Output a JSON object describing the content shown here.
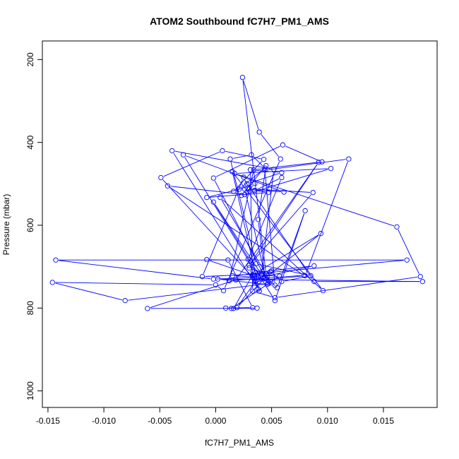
{
  "chart_data": {
    "type": "scatter",
    "title": "ATOM2 Southbound fC7H7_PM1_AMS",
    "xlabel": "fC7H7_PM1_AMS",
    "ylabel": "Pressure (mbar)",
    "xlim": [
      -0.0155,
      0.0198
    ],
    "ylim": [
      1040,
      155
    ],
    "y_reversed": true,
    "grid": false,
    "legend": "none",
    "connect_points": true,
    "series_color": "#0000ff",
    "x_ticks": [
      -0.015,
      -0.01,
      -0.005,
      0.0,
      0.005,
      0.01,
      0.015
    ],
    "x_tick_labels": [
      "-0.015",
      "-0.010",
      "-0.005",
      "0.000",
      "0.005",
      "0.010",
      "0.015"
    ],
    "y_ticks": [
      200,
      400,
      600,
      800,
      1000
    ],
    "y_tick_labels": [
      "200",
      "400",
      "600",
      "800",
      "1000"
    ],
    "x": [
      0.0009,
      0.0033,
      0.0011,
      -0.0008,
      0.0047,
      0.0035,
      0.005,
      0.0019,
      0.0038,
      -0.0002,
      -0.0143,
      0.0171,
      0.0015,
      0.004,
      0.0088,
      0.0036,
      -0.0029,
      0.0061,
      0.0026,
      0.0046,
      0.0049,
      0.0059,
      0.0085,
      0.0036,
      0.0013,
      0.0032,
      0.0044,
      0.0021,
      -0.0008,
      0.0047,
      0.0035,
      0.0059,
      0.0029,
      0.0038,
      -0.0039,
      0.0052,
      0.0041,
      -0.0002,
      0.0053,
      0.008,
      0.0055,
      0.0041,
      0.003,
      0.0039,
      0.0015,
      0.0096,
      0.0004,
      0.0049,
      0.0033,
      0.0094,
      0.0044,
      0.0038,
      0.0045,
      0.0023,
      0.0103,
      0.0017,
      0.0162,
      0.0183,
      0.0053,
      0.0033,
      0.0031,
      0.0059,
      0.0028,
      0.0088,
      0.0185,
      0.0002,
      0.0053,
      0.0044,
      0.0119,
      0.008,
      0.0036,
      -0.0049,
      0.0006,
      0.0043,
      0.0016,
      0.0035,
      0.0026,
      -0.0043,
      0.0079,
      0.0012,
      0.0034,
      0.0095,
      0.006,
      -0.0002,
      0.0047,
      -0.0081,
      -0.0146,
      0.0,
      0.0007,
      0.0058,
      0.0039,
      0.0024,
      0.0045,
      -0.0012,
      0.0025,
      0.003,
      0.0087,
      0.003,
      0.0092,
      0.0018,
      -0.0061,
      0.0037,
      0.0016,
      0.0033,
      0.0057,
      0.0014
    ],
    "y": [
      800,
      799,
      684,
      683,
      734,
      736,
      710,
      799,
      726,
      730,
      684,
      684,
      722,
      726,
      698,
      714,
      430,
      520,
      513,
      743,
      712,
      736,
      722,
      693,
      440,
      430,
      462,
      513,
      533,
      521,
      516,
      485,
      682,
      754,
      420,
      465,
      719,
      544,
      782,
      565,
      751,
      716,
      703,
      759,
      471,
      758,
      533,
      736,
      720,
      620,
      728,
      586,
      456,
      528,
      463,
      475,
      604,
      724,
      775,
      759,
      466,
      473,
      500,
      736,
      736,
      730,
      745,
      467,
      440,
      722,
      734,
      485,
      420,
      441,
      518,
      499,
      526,
      505,
      721,
      734,
      466,
      447,
      406,
      486,
      741,
      782,
      738,
      744,
      758,
      440,
      375,
      243,
      717,
      724,
      484,
      512,
      521,
      697,
      448,
      732,
      801,
      800,
      801,
      720,
      723,
      801
    ]
  }
}
